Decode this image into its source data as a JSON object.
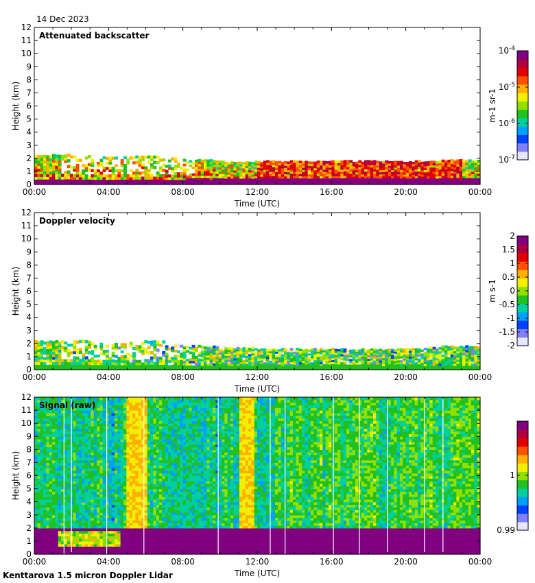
{
  "date": "14 Dec 2023",
  "footer": "Kenttarova 1.5 micron Doppler Lidar",
  "colormap": [
    "#e6e6ff",
    "#8080ff",
    "#0040ff",
    "#00a0ff",
    "#00d0a0",
    "#20c020",
    "#90e000",
    "#f0f000",
    "#ffb000",
    "#ff5000",
    "#e00000",
    "#b00040",
    "#800080"
  ],
  "chart_data": [
    {
      "type": "heatmap",
      "title": "Attenuated backscatter",
      "xlabel": "Time (UTC)",
      "ylabel": "Height (km)",
      "xticks": [
        "00:00",
        "04:00",
        "08:00",
        "12:00",
        "16:00",
        "20:00",
        "00:00"
      ],
      "xlim_hours": [
        0,
        24
      ],
      "ylim_km": [
        0,
        12
      ],
      "yticks": [
        "0",
        "1",
        "2",
        "3",
        "4",
        "5",
        "6",
        "7",
        "8",
        "9",
        "10",
        "11",
        "12"
      ],
      "colorbar": {
        "scale": "log",
        "ticks": [
          {
            "base": "10",
            "exp": "-4"
          },
          {
            "base": "10",
            "exp": "-5"
          },
          {
            "base": "10",
            "exp": "-6"
          },
          {
            "base": "10",
            "exp": "-7"
          }
        ],
        "unit": "m-1 sr-1",
        "range": [
          1e-07,
          0.0001
        ]
      },
      "signal_top_km": [
        2.2,
        2.3,
        2.2,
        2.1,
        2.1,
        2.2,
        2.2,
        2.1,
        1.9,
        1.9,
        1.8,
        1.8,
        1.8,
        1.8,
        1.8,
        1.8,
        1.8,
        1.8,
        1.8,
        1.8,
        1.8,
        1.8,
        1.9,
        1.9
      ]
    },
    {
      "type": "heatmap",
      "title": "Doppler velocity",
      "xlabel": "Time (UTC)",
      "ylabel": "Height (km)",
      "xticks": [
        "00:00",
        "04:00",
        "08:00",
        "12:00",
        "16:00",
        "20:00",
        "00:00"
      ],
      "xlim_hours": [
        0,
        24
      ],
      "ylim_km": [
        0,
        12
      ],
      "yticks": [
        "0",
        "1",
        "2",
        "3",
        "4",
        "5",
        "6",
        "7",
        "8",
        "9",
        "10",
        "11",
        "12"
      ],
      "colorbar": {
        "scale": "linear",
        "ticks": [
          "2",
          "1.5",
          "1",
          "0.5",
          "0",
          "-0.5",
          "-1",
          "-1.5",
          "-2"
        ],
        "unit": "m s-1",
        "range": [
          -2,
          2
        ]
      },
      "signal_top_km": [
        2.2,
        2.2,
        2.2,
        2.1,
        2.1,
        2.1,
        2.2,
        2.1,
        1.9,
        1.8,
        1.7,
        1.7,
        1.6,
        1.6,
        1.6,
        1.6,
        1.6,
        1.6,
        1.6,
        1.6,
        1.6,
        1.7,
        1.8,
        1.8
      ]
    },
    {
      "type": "heatmap",
      "title": "Signal (raw)",
      "xlabel": "Time (UTC)",
      "ylabel": "Height (km)",
      "xticks": [
        "00:00",
        "04:00",
        "08:00",
        "12:00",
        "16:00",
        "20:00",
        "00:00"
      ],
      "xlim_hours": [
        0,
        24
      ],
      "ylim_km": [
        0,
        12
      ],
      "yticks": [
        "0",
        "1",
        "2",
        "3",
        "4",
        "5",
        "6",
        "7",
        "8",
        "9",
        "10",
        "11",
        "12"
      ],
      "colorbar": {
        "scale": "linear",
        "ticks": [
          "1",
          "0.99"
        ],
        "range": [
          0.99,
          1.01
        ]
      },
      "bright_bands_hours": [
        [
          5.0,
          6.0
        ],
        [
          11.0,
          11.9
        ]
      ],
      "boundary_layer_top_km": 2.0,
      "gaps_hours": [
        1.6,
        2.0,
        3.9,
        5.9,
        9.9,
        12.7,
        13.5,
        16.1,
        17.5,
        19.0,
        21.0,
        22.0
      ]
    }
  ]
}
